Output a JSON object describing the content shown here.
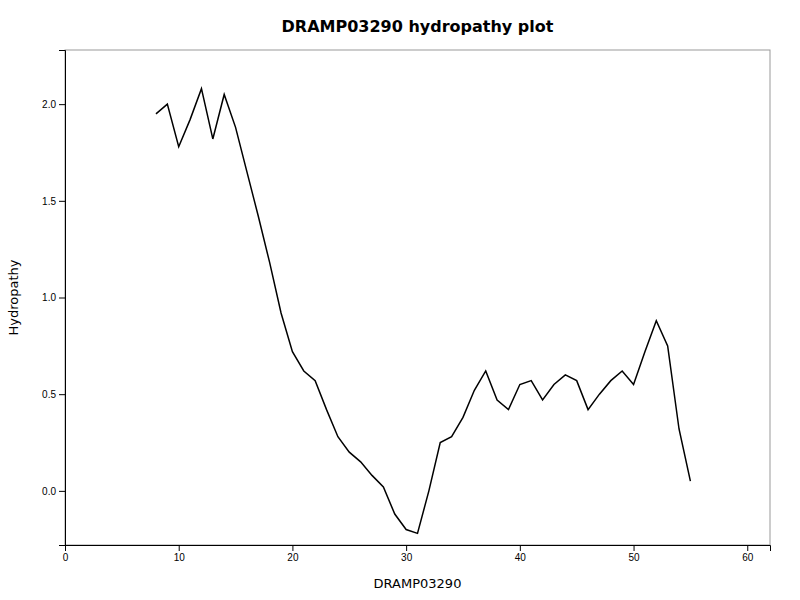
{
  "chart_data": {
    "type": "line",
    "title": "DRAMP03290 hydropathy plot",
    "xlabel": "DRAMP03290",
    "ylabel": "Hydropathy",
    "color": "#000000",
    "grid": false,
    "xlim": [
      0,
      62
    ],
    "ylim": [
      -0.28,
      2.28
    ],
    "xticks": [
      0,
      10,
      20,
      30,
      40,
      50,
      60
    ],
    "yticks": [
      {
        "value": 0.0,
        "label": "0.0"
      },
      0.5,
      {
        "value": 1.0,
        "label": "1.0"
      },
      1.5,
      {
        "value": 2.0,
        "label": "2.0"
      }
    ],
    "x": [
      8,
      9,
      10,
      11,
      12,
      13,
      14,
      15,
      16,
      17,
      18,
      19,
      20,
      21,
      22,
      23,
      24,
      25,
      26,
      27,
      28,
      29,
      30,
      31,
      32,
      33,
      34,
      35,
      36,
      37,
      38,
      39,
      40,
      41,
      42,
      43,
      44,
      45,
      46,
      47,
      48,
      49,
      50,
      51,
      52,
      53,
      54,
      55
    ],
    "values": [
      1.95,
      2.0,
      1.78,
      1.92,
      2.08,
      1.82,
      2.05,
      1.88,
      1.65,
      1.42,
      1.18,
      0.92,
      0.72,
      0.62,
      0.57,
      0.42,
      0.28,
      0.2,
      0.15,
      0.08,
      0.02,
      -0.12,
      -0.2,
      -0.22,
      0.0,
      0.25,
      0.28,
      0.38,
      0.52,
      0.62,
      0.47,
      0.42,
      0.55,
      0.57,
      0.47,
      0.55,
      0.6,
      0.57,
      0.42,
      0.5,
      0.57,
      0.62,
      0.55,
      0.72,
      0.88,
      0.75,
      0.32,
      0.05
    ]
  }
}
